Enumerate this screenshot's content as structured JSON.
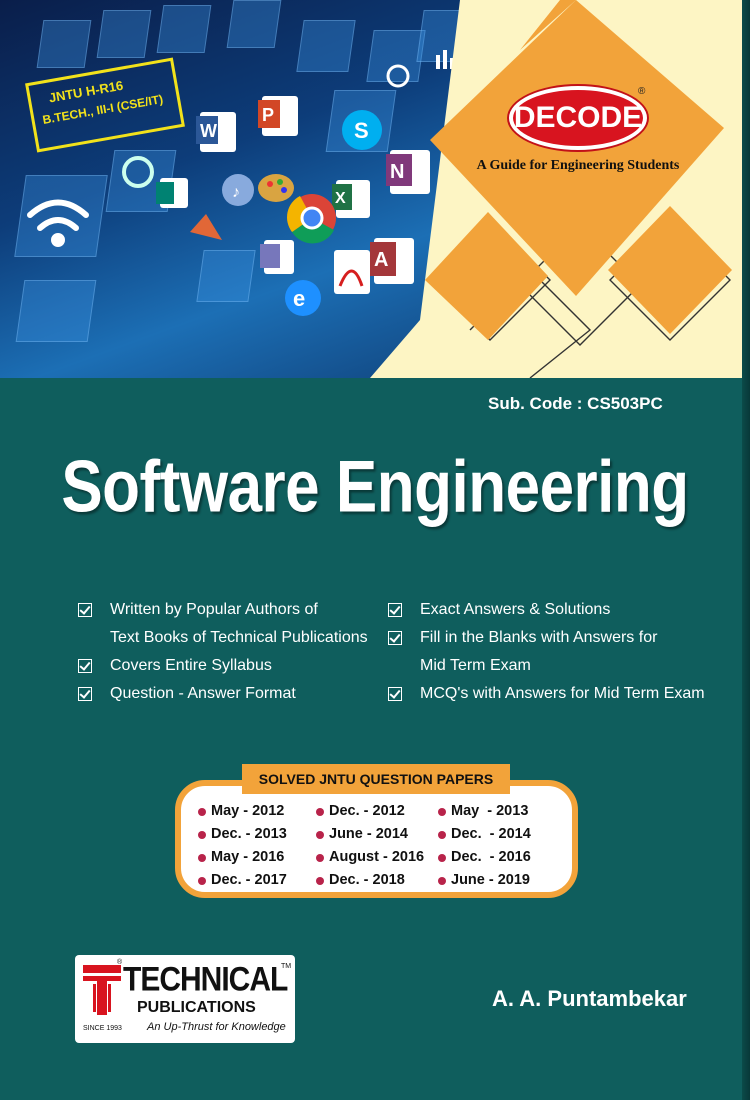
{
  "badge": {
    "line1": "JNTU H-R16",
    "line2": "B.TECH., III-I (CSE/IT)"
  },
  "series": {
    "name": "DECODE",
    "registered": "®",
    "tagline": "A Guide for Engineering Students"
  },
  "sub_code": "Sub. Code : CS503PC",
  "title": "Software Engineering",
  "features_left": [
    {
      "text": "Written by Popular Authors of",
      "continuation": "Text Books of Technical Publications"
    },
    {
      "text": "Covers Entire Syllabus"
    },
    {
      "text": "Question - Answer Format"
    }
  ],
  "features_right": [
    {
      "text": "Exact Answers & Solutions"
    },
    {
      "text": "Fill in the Blanks with Answers for",
      "continuation": "Mid Term Exam"
    },
    {
      "text": "MCQ's with Answers for Mid Term Exam"
    }
  ],
  "papers": {
    "title": "SOLVED JNTU QUESTION PAPERS",
    "rows": [
      [
        "May - 2012",
        "Dec. - 2012",
        "May  - 2013"
      ],
      [
        "Dec. - 2013",
        "June - 2014",
        "Dec.  - 2014"
      ],
      [
        "May - 2016",
        "August - 2016",
        "Dec.  - 2016"
      ],
      [
        "Dec. - 2017",
        "Dec. - 2018",
        "June - 2019"
      ]
    ]
  },
  "publisher": {
    "name": "TECHNICAL",
    "sub": "PUBLICATIONS",
    "tagline": "An Up-Thrust for Knowledge",
    "since": "SINCE 1993",
    "registered": "®",
    "trademark": "TM"
  },
  "author": "A. A. Puntambekar",
  "colors": {
    "teal": "#0f5e5d",
    "orange": "#f2a33a",
    "cream": "#fdf5c4",
    "red": "#d8141f",
    "bullet": "#b8234a"
  }
}
